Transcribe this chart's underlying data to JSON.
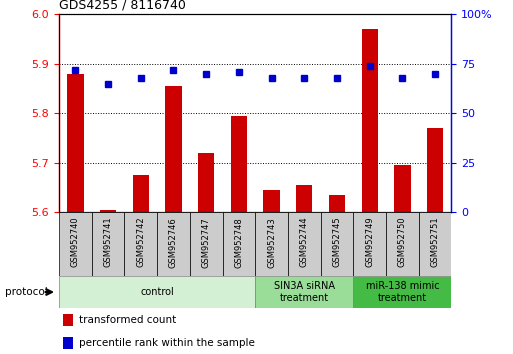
{
  "title": "GDS4255 / 8116740",
  "samples": [
    "GSM952740",
    "GSM952741",
    "GSM952742",
    "GSM952746",
    "GSM952747",
    "GSM952748",
    "GSM952743",
    "GSM952744",
    "GSM952745",
    "GSM952749",
    "GSM952750",
    "GSM952751"
  ],
  "transformed_count": [
    5.88,
    5.605,
    5.675,
    5.855,
    5.72,
    5.795,
    5.645,
    5.655,
    5.635,
    5.97,
    5.695,
    5.77
  ],
  "percentile_rank": [
    72,
    65,
    68,
    72,
    70,
    71,
    68,
    68,
    68,
    74,
    68,
    70
  ],
  "ylim_left": [
    5.6,
    6.0
  ],
  "ylim_right": [
    0,
    100
  ],
  "yticks_left": [
    5.6,
    5.7,
    5.8,
    5.9,
    6.0
  ],
  "yticks_right": [
    0,
    25,
    50,
    75,
    100
  ],
  "bar_color": "#cc0000",
  "dot_color": "#0000cc",
  "bg_color": "#ffffff",
  "protocol_groups": [
    {
      "label": "control",
      "span": [
        0,
        6
      ],
      "color": "#d4f0d4"
    },
    {
      "label": "SIN3A siRNA\ntreatment",
      "span": [
        6,
        9
      ],
      "color": "#99dd99"
    },
    {
      "label": "miR-138 mimic\ntreatment",
      "span": [
        9,
        12
      ],
      "color": "#44bb44"
    }
  ],
  "legend_items": [
    {
      "color": "#cc0000",
      "label": "transformed count"
    },
    {
      "color": "#0000cc",
      "label": "percentile rank within the sample"
    }
  ]
}
